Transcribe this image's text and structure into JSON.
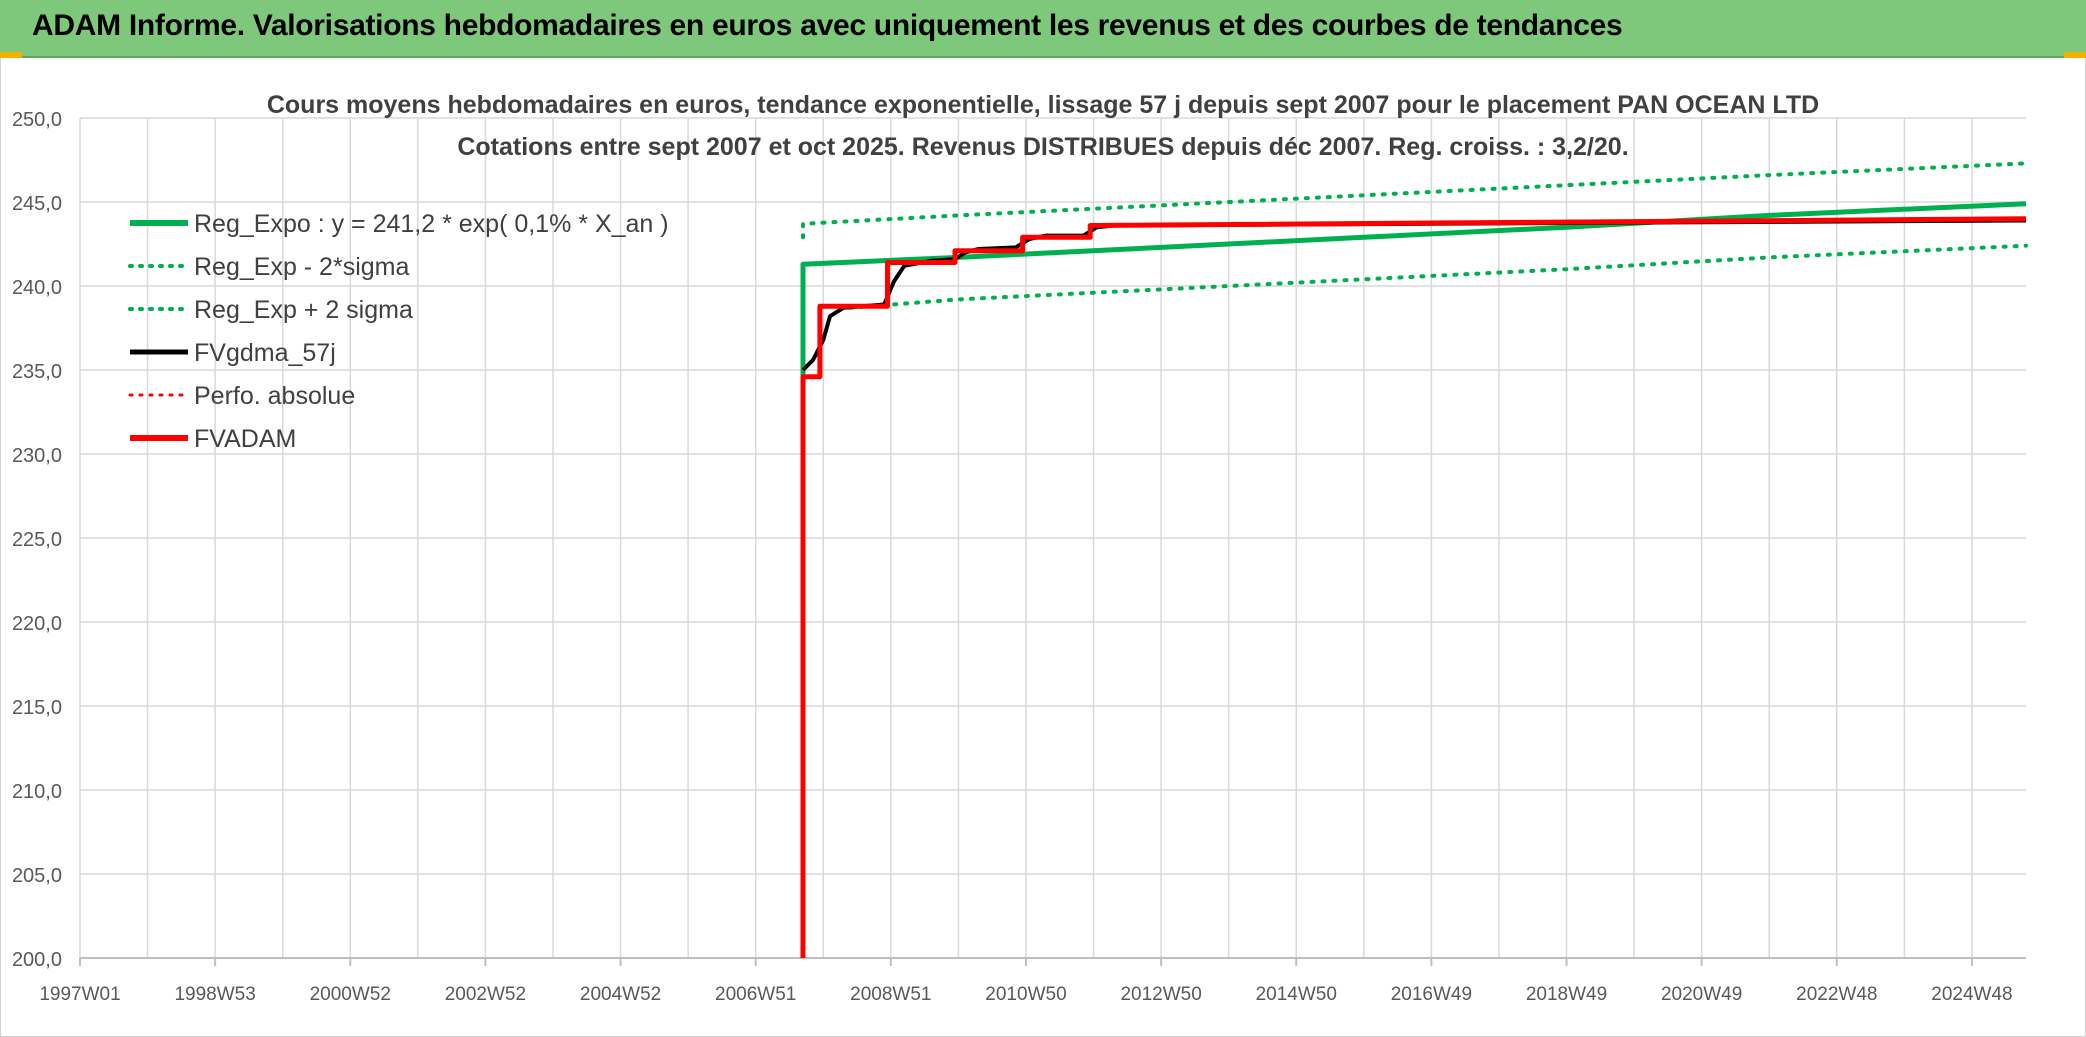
{
  "header": {
    "title": "ADAM Informe. Valorisations hebdomadaires en euros avec uniquement les revenus et des courbes de tendances"
  },
  "colors": {
    "banner": "#7ec87b",
    "green": "#00b050",
    "red": "#ff0000",
    "black": "#000000",
    "grid": "#d9d9d9"
  },
  "chart_data": {
    "type": "line",
    "title": "Cours moyens hebdomadaires en euros, tendance exponentielle, lissage 57 j depuis sept 2007 pour le placement PAN OCEAN LTD",
    "subtitle": "Cotations entre sept 2007 et oct 2025. Revenus DISTRIBUES depuis déc 2007. Reg. croiss. : 3,2/20.",
    "xlabel": "",
    "ylabel": "",
    "ylim": [
      200,
      250
    ],
    "yticks": [
      "250,0",
      "245,0",
      "240,0",
      "235,0",
      "230,0",
      "225,0",
      "220,0",
      "215,0",
      "210,0",
      "205,0",
      "200,0"
    ],
    "xlim": [
      1997.0,
      2025.8
    ],
    "xticks": [
      {
        "label": "1997W01",
        "x": 1997.0
      },
      {
        "label": "1998W53",
        "x": 1999.0
      },
      {
        "label": "2000W52",
        "x": 2001.0
      },
      {
        "label": "2002W52",
        "x": 2003.0
      },
      {
        "label": "2004W52",
        "x": 2005.0
      },
      {
        "label": "2006W51",
        "x": 2007.0
      },
      {
        "label": "2008W51",
        "x": 2009.0
      },
      {
        "label": "2010W50",
        "x": 2011.0
      },
      {
        "label": "2012W50",
        "x": 2013.0
      },
      {
        "label": "2014W50",
        "x": 2015.0
      },
      {
        "label": "2016W49",
        "x": 2017.0
      },
      {
        "label": "2018W49",
        "x": 2019.0
      },
      {
        "label": "2020W49",
        "x": 2021.0
      },
      {
        "label": "2022W48",
        "x": 2023.0
      },
      {
        "label": "2024W48",
        "x": 2025.0
      }
    ],
    "grid": true,
    "legend_position": "top-left",
    "series": [
      {
        "name": "Reg_Expo : y = 241,2 * exp( 0,1% *  X_an )",
        "color": "#00b050",
        "style": "solid",
        "width": 5,
        "points": [
          [
            2007.7,
            200.0
          ],
          [
            2007.7,
            241.3
          ],
          [
            2010.0,
            241.7
          ],
          [
            2013.0,
            242.3
          ],
          [
            2016.0,
            242.9
          ],
          [
            2019.0,
            243.5
          ],
          [
            2022.0,
            244.2
          ],
          [
            2025.8,
            244.9
          ]
        ]
      },
      {
        "name": "Reg_Exp - 2*sigma",
        "color": "#00b050",
        "style": "dotted",
        "width": 4,
        "points": [
          [
            2007.7,
            242.9
          ],
          [
            2007.7,
            243.7
          ],
          [
            2010.0,
            244.2
          ],
          [
            2013.0,
            244.8
          ],
          [
            2016.0,
            245.4
          ],
          [
            2019.0,
            246.0
          ],
          [
            2022.0,
            246.6
          ],
          [
            2025.8,
            247.3
          ]
        ]
      },
      {
        "name": "Reg_Exp + 2 sigma",
        "color": "#00b050",
        "style": "dotted",
        "width": 4,
        "points": [
          [
            2008.4,
            238.7
          ],
          [
            2010.0,
            239.2
          ],
          [
            2013.0,
            239.8
          ],
          [
            2016.0,
            240.4
          ],
          [
            2019.0,
            241.0
          ],
          [
            2022.0,
            241.7
          ],
          [
            2025.8,
            242.4
          ]
        ]
      },
      {
        "name": "FVgdma_57j",
        "color": "#000000",
        "style": "solid",
        "width": 4,
        "points": [
          [
            2007.7,
            235.0
          ],
          [
            2007.85,
            235.6
          ],
          [
            2008.0,
            236.8
          ],
          [
            2008.1,
            238.2
          ],
          [
            2008.3,
            238.7
          ],
          [
            2008.9,
            238.9
          ],
          [
            2009.05,
            240.3
          ],
          [
            2009.2,
            241.2
          ],
          [
            2009.6,
            241.5
          ],
          [
            2009.95,
            241.6
          ],
          [
            2010.1,
            242.0
          ],
          [
            2010.3,
            242.2
          ],
          [
            2010.85,
            242.3
          ],
          [
            2011.05,
            242.8
          ],
          [
            2011.3,
            243.0
          ],
          [
            2011.85,
            243.0
          ],
          [
            2012.05,
            243.5
          ],
          [
            2012.3,
            243.6
          ],
          [
            2025.8,
            243.9
          ]
        ]
      },
      {
        "name": "Perfo. absolue",
        "color": "#ff0000",
        "style": "dotted",
        "width": 3,
        "points": []
      },
      {
        "name": "FVADAM",
        "color": "#ff0000",
        "style": "solid",
        "width": 5,
        "points": [
          [
            2007.7,
            200.0
          ],
          [
            2007.7,
            234.6
          ],
          [
            2007.95,
            234.6
          ],
          [
            2007.95,
            238.8
          ],
          [
            2008.95,
            238.8
          ],
          [
            2008.95,
            241.4
          ],
          [
            2009.95,
            241.4
          ],
          [
            2009.95,
            242.1
          ],
          [
            2010.95,
            242.1
          ],
          [
            2010.95,
            242.9
          ],
          [
            2011.95,
            242.9
          ],
          [
            2011.95,
            243.6
          ],
          [
            2025.8,
            244.0
          ]
        ]
      }
    ]
  }
}
